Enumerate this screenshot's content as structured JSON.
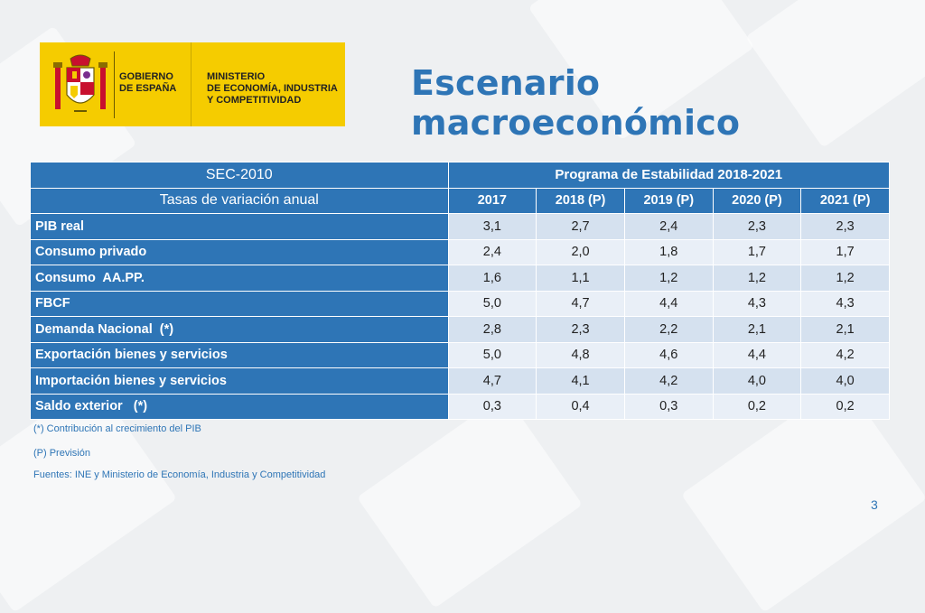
{
  "logo": {
    "gov_text": "GOBIERNO\nDE ESPAÑA",
    "ministry_text": "MINISTERIO\nDE ECONOMÍA, INDUSTRIA\nY COMPETITIVIDAD"
  },
  "title": "Escenario macroeconómico",
  "table": {
    "header1": {
      "left": "SEC-2010",
      "right": "Programa de Estabilidad 2018-2021"
    },
    "header2": [
      "Tasas de variación anual",
      "2017",
      "2018 (P)",
      "2019 (P)",
      "2020 (P)",
      "2021 (P)"
    ],
    "rows": [
      {
        "label": "PIB real",
        "values": [
          "3,1",
          "2,7",
          "2,4",
          "2,3",
          "2,3"
        ]
      },
      {
        "label": "Consumo privado",
        "values": [
          "2,4",
          "2,0",
          "1,8",
          "1,7",
          "1,7"
        ]
      },
      {
        "label": "Consumo  AA.PP.",
        "values": [
          "1,6",
          "1,1",
          "1,2",
          "1,2",
          "1,2"
        ]
      },
      {
        "label": "FBCF",
        "values": [
          "5,0",
          "4,7",
          "4,4",
          "4,3",
          "4,3"
        ]
      },
      {
        "label": "Demanda Nacional  (*)",
        "values": [
          "2,8",
          "2,3",
          "2,2",
          "2,1",
          "2,1"
        ]
      },
      {
        "label": "Exportación bienes y servicios",
        "values": [
          "5,0",
          "4,8",
          "4,6",
          "4,4",
          "4,2"
        ]
      },
      {
        "label": "Importación bienes y servicios",
        "values": [
          "4,7",
          "4,1",
          "4,2",
          "4,0",
          "4,0"
        ]
      },
      {
        "label": "Saldo exterior   (*)",
        "values": [
          "0,3",
          "0,4",
          "0,3",
          "0,2",
          "0,2"
        ]
      }
    ]
  },
  "notes": {
    "note1": "(*) Contribución al crecimiento del PIB",
    "note2": "(P) Previsión",
    "sources": "Fuentes: INE y Ministerio de Economía, Industria y Competitividad"
  },
  "page_number": "3",
  "colors": {
    "accent": "#2e75b6",
    "logo_yellow": "#f5cc00"
  }
}
